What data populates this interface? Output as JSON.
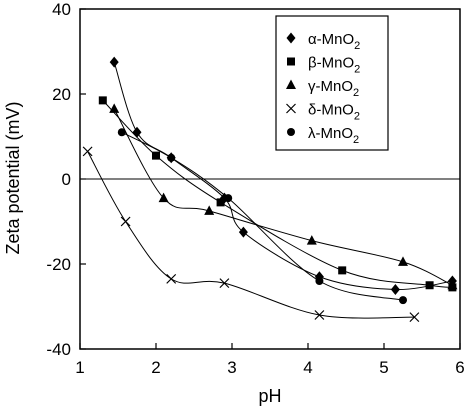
{
  "chart_data": {
    "type": "scatter",
    "xlabel": "pH",
    "ylabel": "Zeta potential (mV)",
    "xlim": [
      1,
      6
    ],
    "ylim": [
      -40,
      40
    ],
    "xticks": [
      1,
      2,
      3,
      4,
      5,
      6
    ],
    "yticks": [
      -40,
      -20,
      0,
      20,
      40
    ],
    "zero_line": true,
    "grid": false,
    "legend_position": "top-right",
    "series": [
      {
        "name": "α-MnO",
        "subscript": "2",
        "marker": "diamond",
        "x": [
          1.45,
          1.75,
          2.2,
          2.9,
          3.15,
          4.15,
          5.15,
          5.9
        ],
        "y": [
          27.5,
          11.0,
          5.0,
          -4.5,
          -12.5,
          -23.0,
          -26.0,
          -24.0
        ]
      },
      {
        "name": "β-MnO",
        "subscript": "2",
        "marker": "square",
        "x": [
          1.3,
          2.0,
          2.85,
          4.45,
          5.6,
          5.9
        ],
        "y": [
          18.5,
          5.5,
          -5.5,
          -21.5,
          -25.0,
          -25.5
        ]
      },
      {
        "name": "γ-MnO",
        "subscript": "2",
        "marker": "triangle",
        "x": [
          1.45,
          2.1,
          2.7,
          4.05,
          5.25,
          5.9
        ],
        "y": [
          16.5,
          -4.5,
          -7.5,
          -14.5,
          -19.5,
          -25.0
        ]
      },
      {
        "name": "δ-MnO",
        "subscript": "2",
        "marker": "cross",
        "x": [
          1.1,
          1.6,
          2.2,
          2.9,
          4.15,
          5.4
        ],
        "y": [
          6.5,
          -10.0,
          -23.5,
          -24.5,
          -32.0,
          -32.5
        ]
      },
      {
        "name": "λ-MnO",
        "subscript": "2",
        "marker": "circle",
        "x": [
          1.55,
          2.2,
          2.95,
          4.15,
          5.25
        ],
        "y": [
          11.0,
          5.0,
          -4.5,
          -24.0,
          -28.5
        ]
      }
    ]
  }
}
